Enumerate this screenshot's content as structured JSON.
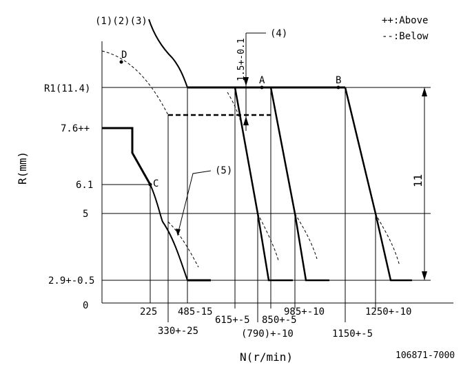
{
  "top_labels": {
    "curves": "(1)(2)(3)",
    "callout_4": "(4)",
    "callout_5": "(5)",
    "dim_vertical": "1.5+-0.1"
  },
  "legend": {
    "above": "++:Above",
    "below": "--:Below"
  },
  "points": {
    "a": "A",
    "b": "B",
    "c": "C",
    "d": "D"
  },
  "y_axis": {
    "title": "R(mm)",
    "r1": "R1(11.4)",
    "v76": "7.6++",
    "v61": "6.1",
    "v5": "5",
    "v29": "2.9+-0.5",
    "v0": "0"
  },
  "x_axis": {
    "title": "N(r/min)",
    "t225": "225",
    "t330": "330+-25",
    "t485": "485-15",
    "t615": "615+-5",
    "t790": "(790)+-10",
    "t850": "850+-5",
    "t985": "985+-10",
    "t1150": "1150+-5",
    "t1250": "1250+-10"
  },
  "dimension_11": "11",
  "drawing_number": "106871-7000"
}
